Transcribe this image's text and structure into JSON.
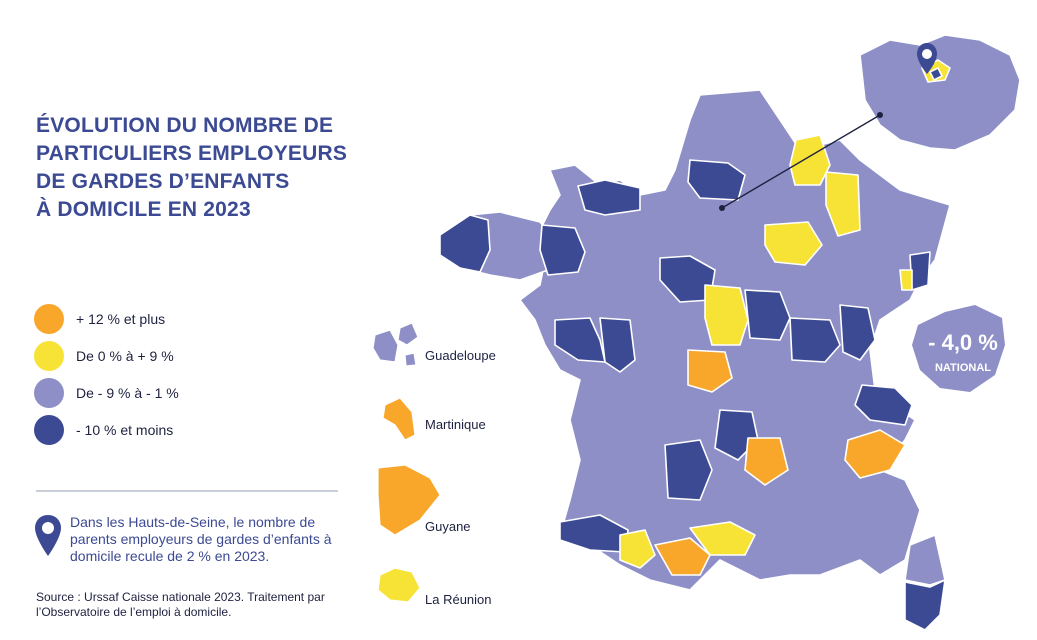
{
  "title_lines": [
    "ÉVOLUTION DU NOMBRE DE",
    "PARTICULIERS EMPLOYEURS",
    "DE GARDES D’ENFANTS",
    "À DOMICILE EN 2023"
  ],
  "colors": {
    "orange": "#f9a72b",
    "yellow": "#f7e336",
    "light": "#8d8fc6",
    "dark": "#3c4a93",
    "border": "#ffffff"
  },
  "legend": [
    {
      "label": "+ 12 % et plus",
      "color": "#f9a72b"
    },
    {
      "label": "De 0 % à + 9 %",
      "color": "#f7e336"
    },
    {
      "label": "De - 9 % à - 1 %",
      "color": "#8d8fc6"
    },
    {
      "label": "- 10 % et moins",
      "color": "#3c4a93"
    }
  ],
  "note": {
    "icon": "map-pin-icon",
    "text": "Dans les Hauts-de-Seine, le nombre de parents employeurs de gardes d’enfants à domicile recule de 2 % en 2023."
  },
  "source": "Source : Urssaf Caisse nationale 2023. Traitement par l’Observatoire de l’emploi à domicile.",
  "national": {
    "value": "- 4,0 %",
    "label": "NATIONAL"
  },
  "overseas": [
    {
      "name": "Guadeloupe",
      "category": "light"
    },
    {
      "name": "Martinique",
      "category": "orange"
    },
    {
      "name": "Guyane",
      "category": "orange"
    },
    {
      "name": "La Réunion",
      "category": "yellow"
    }
  ],
  "map_pin_icon": "map-pin-icon"
}
